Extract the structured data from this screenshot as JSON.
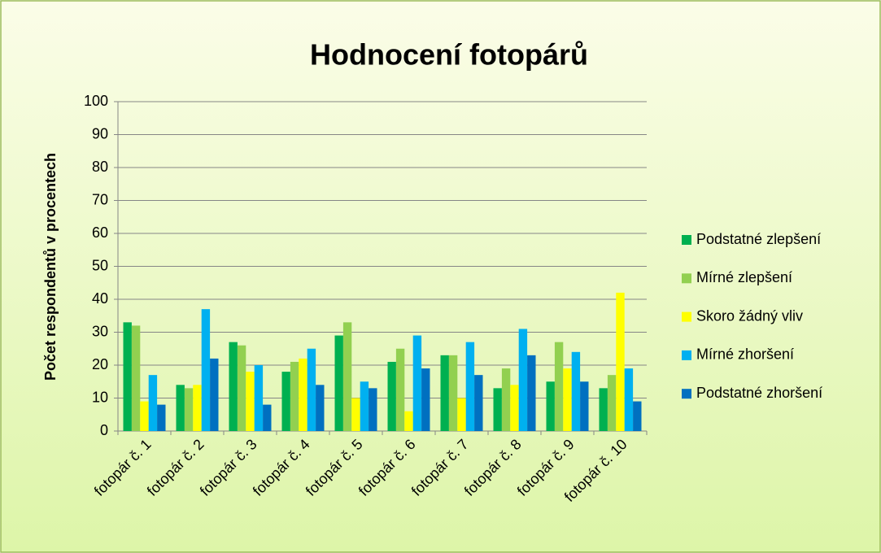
{
  "chart_data": {
    "type": "bar",
    "title": "Hodnocení fotopárů",
    "y_label": "Počet respondentů v procentech",
    "categories": [
      "fotopár č. 1",
      "fotopár č. 2",
      "fotopár č. 3",
      "fotopár č. 4",
      "fotopár č. 5",
      "fotopár č. 6",
      "fotopár č. 7",
      "fotopár č. 8",
      "fotopár č. 9",
      "fotopár č. 10"
    ],
    "series": [
      {
        "name": "Podstatné zlepšení",
        "color": "#00b050",
        "values": [
          33,
          14,
          27,
          18,
          29,
          21,
          23,
          13,
          15,
          13
        ]
      },
      {
        "name": "Mírné zlepšení",
        "color": "#92d050",
        "values": [
          32,
          13,
          26,
          21,
          33,
          25,
          23,
          19,
          27,
          17
        ]
      },
      {
        "name": "Skoro žádný vliv",
        "color": "#ffff00",
        "values": [
          9,
          14,
          18,
          22,
          10,
          6,
          10,
          14,
          19,
          42
        ]
      },
      {
        "name": "Mírné zhoršení",
        "color": "#00b0f0",
        "values": [
          17,
          37,
          20,
          25,
          15,
          29,
          27,
          31,
          24,
          19
        ]
      },
      {
        "name": "Podstatné zhoršení",
        "color": "#0070c0",
        "values": [
          8,
          22,
          8,
          14,
          13,
          19,
          17,
          23,
          15,
          9
        ]
      }
    ],
    "ylim": [
      0,
      100
    ],
    "yticks": [
      0,
      10,
      20,
      30,
      40,
      50,
      60,
      70,
      80,
      90,
      100
    ],
    "grid": true,
    "legend": "right"
  }
}
